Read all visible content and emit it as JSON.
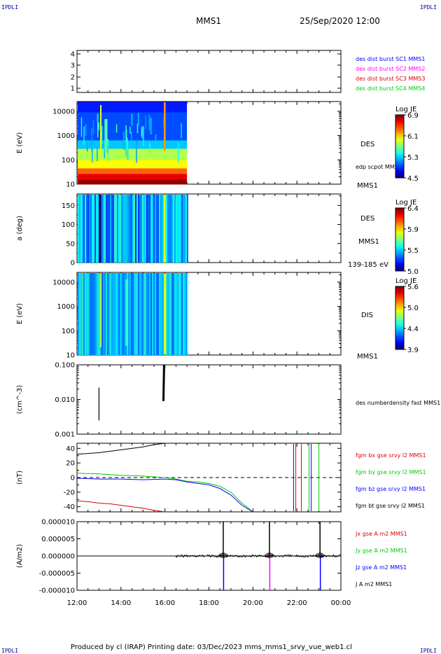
{
  "corner_logo": "IPDLI",
  "header": {
    "spacecraft": "MMS1",
    "datetime": "25/Sep/2020 12:00"
  },
  "footer": {
    "text": "Produced by cl (IRAP)   Printing date: 03/Dec/2023   mms_mms1_srvy_vue_web1.cl"
  },
  "x_axis": {
    "ticks": [
      "12:00",
      "14:00",
      "16:00",
      "18:00",
      "20:00",
      "22:00",
      "00:00"
    ]
  },
  "colors": {
    "c1": "#0000ff",
    "c2": "#ff00ff",
    "c3": "#dd0000",
    "c4": "#00cc00",
    "black": "#000000"
  },
  "chart_data": [
    {
      "type": "table",
      "panel": "burst",
      "yticks": [
        "4",
        "3",
        "2",
        "1"
      ],
      "legend": [
        "des dist burst SC1 MMS1",
        "des dist burst SC2 MMS2",
        "des dist burst SC3 MMS3",
        "des dist burst SC4 MMS4"
      ]
    },
    {
      "type": "heatmap",
      "panel": "des-energy",
      "ylabel": "E (eV)",
      "yticks": [
        "10000",
        "1000",
        "100",
        "10"
      ],
      "label": "DES",
      "sublabel": "MMS1",
      "overlay": "edp scpot MMS1",
      "colorbar": {
        "title": "Log JE",
        "ticks": [
          "6.9",
          "6.1",
          "5.3",
          "4.5"
        ],
        "min": 4.5,
        "max": 6.9
      },
      "data_extent_hours": [
        12,
        17
      ]
    },
    {
      "type": "heatmap",
      "panel": "des-pitch",
      "ylabel": "a (deg)",
      "yticks": [
        "150",
        "100",
        "50",
        "0"
      ],
      "label": "DES",
      "sublabel": "MMS1",
      "energy_range": "139-185 eV",
      "colorbar": {
        "title": "Log JE",
        "ticks": [
          "6.4",
          "5.9",
          "5.5",
          "5.0"
        ],
        "min": 5.0,
        "max": 6.4
      },
      "data_extent_hours": [
        12,
        17
      ]
    },
    {
      "type": "heatmap",
      "panel": "dis-energy",
      "ylabel": "E (eV)",
      "yticks": [
        "10000",
        "1000",
        "100",
        "10"
      ],
      "label": "DIS",
      "sublabel": "MMS1",
      "colorbar": {
        "title": "Log JE",
        "ticks": [
          "5.6",
          "5.0",
          "4.4",
          "3.9"
        ],
        "min": 3.9,
        "max": 5.6
      },
      "data_extent_hours": [
        12,
        17
      ]
    },
    {
      "type": "line",
      "panel": "density",
      "ylabel": "(cm^-3)",
      "yticks": [
        "0.100",
        "0.010",
        "0.001"
      ],
      "ylim": [
        0.001,
        0.1
      ],
      "legend": [
        "des numberdensity fast MMS1"
      ],
      "series": [
        {
          "x": [
            13.0,
            13.0
          ],
          "y": [
            0.0025,
            0.022
          ]
        },
        {
          "x": [
            15.93,
            15.96
          ],
          "y": [
            0.009,
            0.11
          ]
        }
      ]
    },
    {
      "type": "line",
      "panel": "fgm",
      "ylabel": "(nT)",
      "yticks": [
        "40",
        "20",
        "0",
        "-20",
        "-40"
      ],
      "ylim": [
        -47,
        47
      ],
      "legend": [
        "fgm bx gse srvy l2 MMS1",
        "fgm by gse srvy l2 MMS1",
        "fgm bz gse srvy l2 MMS1",
        "fgm bt gse srvy l2 MMS1"
      ],
      "series": [
        {
          "x": [
            12.0,
            12.5,
            13.0,
            13.5,
            14.0,
            14.5,
            15.0,
            15.5,
            16.0
          ],
          "y": [
            -32,
            -33,
            -35,
            -36,
            -38,
            -40,
            -42,
            -45,
            -48
          ]
        },
        {
          "x": [
            12.0,
            13.0,
            14.0,
            15.0,
            16.0,
            16.5,
            17.0,
            17.5,
            18.0,
            18.5,
            19.0,
            19.5,
            20.0
          ],
          "y": [
            6,
            5,
            3,
            2,
            0,
            -2,
            -5,
            -6,
            -8,
            -12,
            -20,
            -35,
            -48
          ]
        },
        {
          "x": [
            12.0,
            13.0,
            14.0,
            15.0,
            16.0,
            16.5,
            17.0,
            17.5,
            18.0,
            18.5,
            19.0,
            19.5,
            20.0
          ],
          "y": [
            -1,
            -2,
            -2,
            -3,
            -2,
            -3,
            -6,
            -8,
            -10,
            -15,
            -24,
            -38,
            -48
          ]
        },
        {
          "x": [
            12.0,
            13.0,
            14.0,
            15.0,
            15.5,
            16.0
          ],
          "y": [
            32,
            34,
            38,
            42,
            45,
            47
          ]
        }
      ],
      "reference_line": 0
    },
    {
      "type": "line",
      "panel": "current",
      "ylabel": "(A/m2)",
      "yticks": [
        "0.000010",
        "0.000005",
        "0.000000",
        "-0.000005",
        "-0.000010"
      ],
      "ylim": [
        -1e-05,
        1e-05
      ],
      "legend": [
        "Jx gse A m2 MMS1",
        "Jy gse A m2 MMS1",
        "Jz gse A m2 MMS1",
        "J A m2 MMS1"
      ],
      "spikes": [
        {
          "x": 18.65,
          "J": 1e-05,
          "Jz": -1e-05
        },
        {
          "x": 20.75,
          "J": 1e-05,
          "Jx": -1e-05
        },
        {
          "x": 23.05,
          "J": 1e-05,
          "Jz": -1e-05
        }
      ]
    }
  ]
}
